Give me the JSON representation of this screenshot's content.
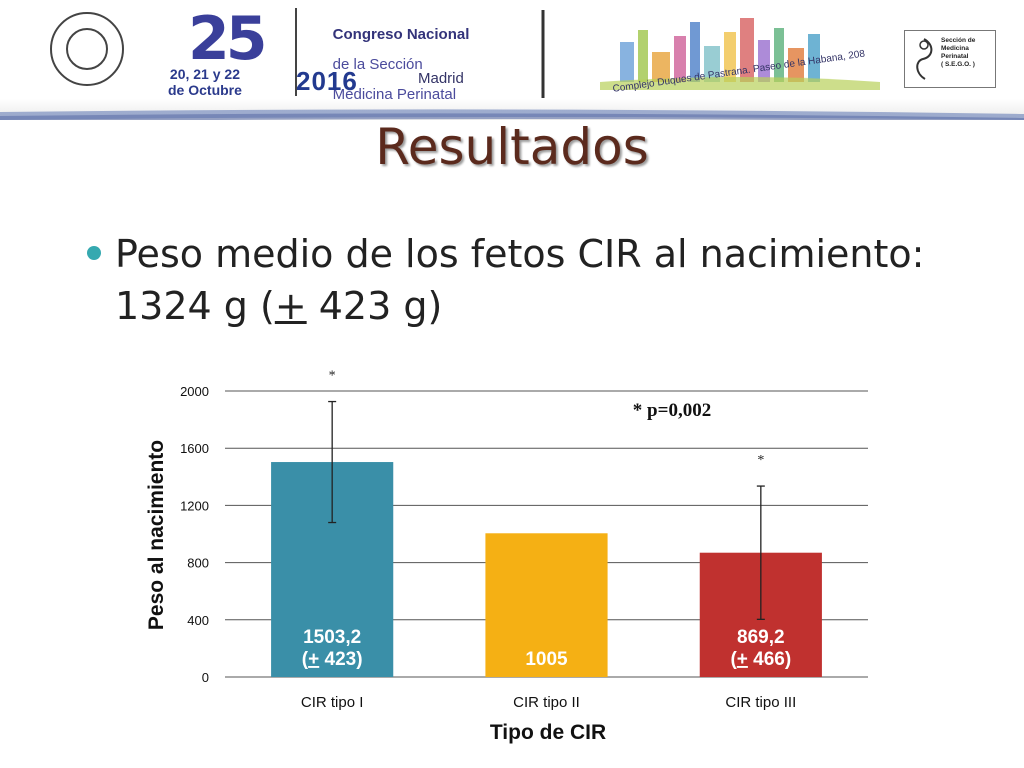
{
  "banner": {
    "number_logo": "25",
    "title_line1": "Congreso Nacional",
    "title_line2": "de la Sección",
    "title_line3": "Medicina Perinatal",
    "dates": "20, 21 y 22\nde Octubre",
    "year": "2016",
    "city": "Madrid",
    "venue": "Complejo Duques de Pastrana. Paseo de la Habana, 208",
    "section_logo_text": "Sección de\nMedicina\nPerinatal\n( S.E.G.O. )",
    "colors": {
      "navy": "#2b3a8c",
      "purple": "#4b4b9c"
    }
  },
  "slide": {
    "title": "Resultados",
    "bullet_line1": "Peso medio de los fetos CIR al nacimiento:",
    "bullet_line2_pre": "1324 g (",
    "bullet_line2_pm": "+",
    "bullet_line2_post": " 423 g)"
  },
  "chart_data": {
    "type": "bar",
    "xlabel": "Tipo de CIR",
    "ylabel": "Peso al nacimiento",
    "ylim": [
      0,
      2000
    ],
    "yticks": [
      0,
      400,
      800,
      1200,
      1600,
      2000
    ],
    "grid": true,
    "categories": [
      "CIR tipo I",
      "CIR tipo II",
      "CIR tipo III"
    ],
    "values": [
      1503.2,
      1005,
      869.2
    ],
    "error": [
      423,
      null,
      466
    ],
    "colors": [
      "#3a8fa8",
      "#f5b014",
      "#c0312f"
    ],
    "data_labels": [
      [
        "1503,2",
        "(+ 423)"
      ],
      [
        "1005"
      ],
      [
        "869,2",
        "(+ 466)"
      ]
    ],
    "significance_marks": [
      "*",
      "",
      "*"
    ],
    "annotation": "* p=0,002"
  }
}
